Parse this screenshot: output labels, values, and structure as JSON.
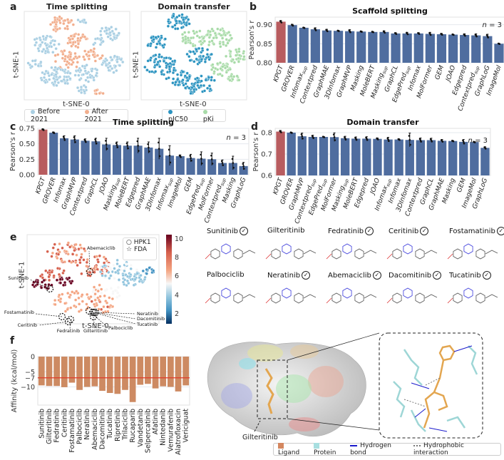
{
  "panels": {
    "a": {
      "letter": "a",
      "left": {
        "title": "Time splitting",
        "xlabel": "t-SNE-0",
        "ylabel": "t-SNE-1",
        "legend": [
          {
            "label": "Before 2021",
            "color": "#a9cfe3"
          },
          {
            "label": "After 2021",
            "color": "#f2ae8d"
          }
        ]
      },
      "right": {
        "title": "Domain transfer",
        "xlabel": "t-SNE-0",
        "ylabel": "t-SNE-1",
        "legend": [
          {
            "label": "pIC50",
            "color": "#2a93c0"
          },
          {
            "label": "pKi",
            "color": "#a8dba8"
          }
        ]
      }
    },
    "b": {
      "letter": "b"
    },
    "c": {
      "letter": "c"
    },
    "d": {
      "letter": "d"
    },
    "e": {
      "letter": "e",
      "xlabel": "t-SNE-0",
      "ylabel": "t-SNE-1",
      "legend": [
        {
          "symbol": "○",
          "label": "HPK1"
        },
        {
          "symbol": "☆",
          "label": "FDA"
        }
      ],
      "colorbar_ticks": [
        "10",
        "8",
        "6",
        "4",
        "2"
      ],
      "annotations": [
        "Abemaciclib",
        "Sunitinib",
        "Fostamatinib",
        "Ceritinib",
        "Fedratinib",
        "Gilteritinib",
        "Palbociclib",
        "Neratinib",
        "Dacomitinib",
        "Tucatinib"
      ],
      "molecules": [
        {
          "name": "Sunitinib",
          "fda": true
        },
        {
          "name": "Gilteritinib",
          "fda": false
        },
        {
          "name": "Fedratinib",
          "fda": true
        },
        {
          "name": "Ceritinib",
          "fda": true
        },
        {
          "name": "Fostamatinib",
          "fda": true
        },
        {
          "name": "Palbociclib",
          "fda": false
        },
        {
          "name": "Neratinib",
          "fda": true
        },
        {
          "name": "Abemaciclib",
          "fda": true
        },
        {
          "name": "Dacomitinib",
          "fda": true
        },
        {
          "name": "Tucatinib",
          "fda": true
        }
      ],
      "check_glyph": "✓"
    },
    "f": {
      "letter": "f"
    },
    "g": {
      "letter": "g",
      "ligand_label": "Gilteritinib",
      "legend": [
        {
          "label": "Ligand",
          "color": "#d4875f",
          "kind": "square"
        },
        {
          "label": "Protein",
          "color": "#a8dfe0",
          "kind": "square"
        },
        {
          "label": "Hydrogen bond",
          "color": "#1a1acc",
          "kind": "line"
        },
        {
          "label": "Hydrophobic interaction",
          "color": "#777777",
          "kind": "dots"
        }
      ]
    }
  },
  "chart_data": [
    {
      "id": "b",
      "type": "bar",
      "title": "Scaffold splitting",
      "ylabel": "Pearson's r",
      "xlabel": "",
      "ylim": [
        0.8,
        0.92
      ],
      "yticks": [
        "0.80",
        "0.85",
        "0.90"
      ],
      "annotation": "n = 3",
      "grid": true,
      "categories": [
        "KPGT",
        "GROVER",
        "Infomax_sup",
        "Contextpred",
        "GraphMAE",
        "3DInfomax",
        "GraphMVP",
        "Masking",
        "MoleBERT",
        "Masking_sup",
        "GraphCL",
        "EdgePred_sup",
        "Infomax",
        "MolFormer",
        "GEM",
        "JOAO",
        "Edgepred",
        "Contextpred_sup",
        "GraphLoG",
        "ImageMol"
      ],
      "values": [
        0.908,
        0.899,
        0.892,
        0.888,
        0.885,
        0.884,
        0.883,
        0.882,
        0.881,
        0.881,
        0.877,
        0.877,
        0.877,
        0.876,
        0.875,
        0.874,
        0.873,
        0.872,
        0.87,
        0.85
      ],
      "errors": [
        0.003,
        0.002,
        0.001,
        0.004,
        0.003,
        0.001,
        0.004,
        0.001,
        0.001,
        0.003,
        0.002,
        0.003,
        0.002,
        0.004,
        0.002,
        0.001,
        0.003,
        0.004,
        0.005,
        0.001
      ],
      "highlight": "KPGT",
      "colors": {
        "highlight": "#b85c5f",
        "default": "#4f6d9f"
      }
    },
    {
      "id": "c",
      "type": "bar",
      "title": "Time splitting",
      "ylabel": "Pearson's r",
      "xlabel": "",
      "ylim": [
        0.0,
        0.75
      ],
      "yticks": [
        "0.00",
        "0.25",
        "0.50",
        "0.75"
      ],
      "annotation": "n = 3",
      "grid": true,
      "categories": [
        "KPGT",
        "GROVER",
        "Infomax",
        "GraphMVP",
        "Contextpred",
        "GraphCL",
        "JOAO",
        "Masking_sup",
        "MoleBERT",
        "Edgepred",
        "GraphMAE",
        "3DInfomax",
        "Infomax_sup",
        "ImageMol",
        "GEM",
        "EdgePred_sup",
        "MolFormer",
        "Contextpred_sup",
        "Masking",
        "GraphLoG"
      ],
      "values": [
        0.73,
        0.68,
        0.59,
        0.57,
        0.55,
        0.54,
        0.49,
        0.48,
        0.47,
        0.47,
        0.44,
        0.42,
        0.31,
        0.3,
        0.27,
        0.26,
        0.25,
        0.19,
        0.19,
        0.14
      ],
      "errors": [
        0.01,
        0.01,
        0.04,
        0.06,
        0.03,
        0.05,
        0.1,
        0.05,
        0.06,
        0.12,
        0.09,
        0.17,
        0.16,
        0.02,
        0.06,
        0.11,
        0.1,
        0.05,
        0.11,
        0.06
      ],
      "highlight": "KPGT",
      "colors": {
        "highlight": "#b85c5f",
        "default": "#4f6d9f"
      }
    },
    {
      "id": "d",
      "type": "bar",
      "title": "Domain transfer",
      "ylabel": "Pearson's r",
      "xlabel": "",
      "ylim": [
        0.6,
        0.82
      ],
      "yticks": [
        "0.6",
        "0.7",
        "0.8"
      ],
      "annotation": "n = 3",
      "grid": true,
      "categories": [
        "KPGT",
        "GROVER",
        "GraphMVP",
        "Contextpred_sup",
        "EdgePred_sup",
        "MolFormer",
        "Masking_sup",
        "MoleBERT",
        "Edgepred",
        "JOAO",
        "Infomax_sup",
        "Infomax",
        "3DInfomax",
        "Contextpred",
        "GraphCL",
        "GraphMAE",
        "Masking",
        "GEM",
        "ImageMol",
        "GraphLoG"
      ],
      "values": [
        0.805,
        0.8,
        0.783,
        0.78,
        0.78,
        0.779,
        0.774,
        0.772,
        0.772,
        0.771,
        0.768,
        0.768,
        0.766,
        0.765,
        0.765,
        0.762,
        0.761,
        0.757,
        0.756,
        0.729
      ],
      "errors": [
        0.005,
        0.002,
        0.015,
        0.008,
        0.002,
        0.02,
        0.009,
        0.008,
        0.009,
        0.004,
        0.01,
        0.003,
        0.032,
        0.01,
        0.009,
        0.006,
        0.002,
        0.011,
        0.002,
        0.005
      ],
      "highlight": "KPGT",
      "colors": {
        "highlight": "#b85c5f",
        "default": "#4f6d9f"
      }
    },
    {
      "id": "f",
      "type": "bar",
      "title": "",
      "ylabel": "Affinity (kcal/mol)",
      "xlabel": "",
      "ylim": [
        -16,
        0
      ],
      "yticks": [
        "0",
        "−5",
        "−7",
        "−10"
      ],
      "ytick_values": [
        0,
        -5,
        -7,
        -10
      ],
      "reference_line": {
        "value": -7,
        "color": "#e03a2a"
      },
      "categories": [
        "Sunitinib",
        "Gilteritinib",
        "Fedratinib",
        "Ceritinib",
        "Fostamatinib",
        "Palbociclib",
        "Neratinib",
        "Abemaciclib",
        "Dacomitinib",
        "Tucatinib",
        "Ripretinib",
        "Trilaciclib",
        "Rucaparib",
        "Vandetanib",
        "Selpercatinib",
        "Afatinib",
        "Nintedanib",
        "Vemurafenib",
        "Alatrofloxacin",
        "Vericiguat"
      ],
      "values": [
        -9.5,
        -9.7,
        -9.7,
        -10.1,
        -8.6,
        -11.0,
        -10.0,
        -9.8,
        -11.3,
        -12.0,
        -12.3,
        -11.0,
        -15.0,
        -9.3,
        -9.0,
        -10.5,
        -9.8,
        -10.0,
        -11.5,
        -9.5
      ],
      "colors": {
        "default": "#cd8a62"
      }
    }
  ]
}
